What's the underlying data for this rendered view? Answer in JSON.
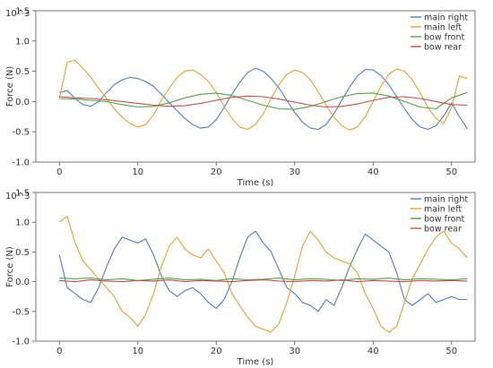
{
  "chart_data": [
    {
      "type": "line",
      "scale_label": "10^3",
      "xlabel": "Time (s)",
      "ylabel": "Force (N)",
      "xlim": [
        -3,
        53
      ],
      "ylim": [
        -1.0,
        1.5
      ],
      "xticks": [
        0,
        10,
        20,
        30,
        40,
        50
      ],
      "yticks": [
        -1.0,
        -0.5,
        0.0,
        0.5,
        1.0,
        1.5
      ],
      "ytick_labels": [
        "-1.0",
        "-0.5",
        "0.0",
        "0.5",
        "1.0",
        "1.5"
      ],
      "grid": false,
      "legend_position": "top-right",
      "series": [
        {
          "name": "main right",
          "color": "#4f7fbf",
          "x": [
            0,
            1,
            2,
            3,
            4,
            5,
            6,
            7,
            8,
            9,
            10,
            11,
            12,
            13,
            14,
            15,
            16,
            17,
            18,
            19,
            20,
            21,
            22,
            23,
            24,
            25,
            26,
            27,
            28,
            29,
            30,
            31,
            32,
            33,
            34,
            35,
            36,
            37,
            38,
            39,
            40,
            41,
            42,
            43,
            44,
            45,
            46,
            47,
            48,
            49,
            50,
            51,
            52
          ],
          "y": [
            0.15,
            0.18,
            0.05,
            -0.05,
            -0.08,
            0.0,
            0.15,
            0.28,
            0.36,
            0.4,
            0.38,
            0.33,
            0.25,
            0.12,
            -0.02,
            -0.15,
            -0.28,
            -0.38,
            -0.44,
            -0.42,
            -0.3,
            -0.1,
            0.12,
            0.32,
            0.48,
            0.55,
            0.5,
            0.38,
            0.22,
            0.02,
            -0.18,
            -0.34,
            -0.44,
            -0.46,
            -0.38,
            -0.2,
            0.02,
            0.24,
            0.42,
            0.53,
            0.52,
            0.43,
            0.28,
            0.08,
            -0.12,
            -0.3,
            -0.42,
            -0.46,
            -0.4,
            -0.24,
            -0.02,
            -0.25,
            -0.45
          ]
        },
        {
          "name": "main left",
          "color": "#e8a033",
          "x": [
            0,
            1,
            2,
            3,
            4,
            5,
            6,
            7,
            8,
            9,
            10,
            11,
            12,
            13,
            14,
            15,
            16,
            17,
            18,
            19,
            20,
            21,
            22,
            23,
            24,
            25,
            26,
            27,
            28,
            29,
            30,
            31,
            32,
            33,
            34,
            35,
            36,
            37,
            38,
            39,
            40,
            41,
            42,
            43,
            44,
            45,
            46,
            47,
            48,
            49,
            50,
            51,
            52
          ],
          "y": [
            0.05,
            0.65,
            0.68,
            0.55,
            0.4,
            0.22,
            0.05,
            -0.12,
            -0.26,
            -0.36,
            -0.42,
            -0.38,
            -0.22,
            0.02,
            0.22,
            0.4,
            0.5,
            0.52,
            0.45,
            0.33,
            0.15,
            -0.08,
            -0.28,
            -0.42,
            -0.46,
            -0.38,
            -0.2,
            0.05,
            0.28,
            0.45,
            0.52,
            0.48,
            0.36,
            0.16,
            -0.06,
            -0.26,
            -0.4,
            -0.47,
            -0.42,
            -0.25,
            0.0,
            0.25,
            0.45,
            0.54,
            0.5,
            0.36,
            0.14,
            -0.1,
            -0.28,
            -0.36,
            -0.1,
            0.42,
            0.38
          ]
        },
        {
          "name": "bow front",
          "color": "#5a9e4b",
          "x": [
            0,
            2,
            4,
            6,
            8,
            10,
            12,
            14,
            16,
            18,
            20,
            22,
            24,
            26,
            28,
            30,
            32,
            34,
            36,
            38,
            40,
            42,
            44,
            46,
            48,
            50,
            52
          ],
          "y": [
            0.05,
            0.04,
            0.02,
            0.0,
            -0.05,
            -0.09,
            -0.08,
            -0.02,
            0.06,
            0.12,
            0.14,
            0.1,
            0.02,
            -0.06,
            -0.12,
            -0.13,
            -0.08,
            0.0,
            0.08,
            0.13,
            0.14,
            0.09,
            0.0,
            -0.09,
            -0.12,
            0.06,
            0.15
          ]
        },
        {
          "name": "bow rear",
          "color": "#b85450",
          "x": [
            0,
            2,
            4,
            6,
            8,
            10,
            12,
            14,
            16,
            18,
            20,
            22,
            24,
            26,
            28,
            30,
            32,
            34,
            36,
            38,
            40,
            42,
            44,
            46,
            48,
            50,
            52
          ],
          "y": [
            0.08,
            0.06,
            0.05,
            0.03,
            0.0,
            -0.03,
            -0.06,
            -0.08,
            -0.07,
            -0.03,
            0.02,
            0.07,
            0.09,
            0.08,
            0.04,
            -0.01,
            -0.06,
            -0.09,
            -0.08,
            -0.04,
            0.02,
            0.07,
            0.08,
            0.05,
            0.0,
            -0.05,
            -0.06
          ]
        }
      ]
    },
    {
      "type": "line",
      "scale_label": "10^3",
      "xlabel": "Time (s)",
      "ylabel": "Force (N)",
      "xlim": [
        -3,
        53
      ],
      "ylim": [
        -1.0,
        1.5
      ],
      "xticks": [
        0,
        10,
        20,
        30,
        40,
        50
      ],
      "yticks": [
        -1.0,
        -0.5,
        0.0,
        0.5,
        1.0,
        1.5
      ],
      "ytick_labels": [
        "-1.0",
        "-0.5",
        "0.0",
        "0.5",
        "1.0",
        "1.5"
      ],
      "grid": false,
      "legend_position": "top-right",
      "series": [
        {
          "name": "main right",
          "color": "#4f7fbf",
          "x": [
            0,
            1,
            2,
            3,
            4,
            5,
            6,
            7,
            8,
            9,
            10,
            11,
            12,
            13,
            14,
            15,
            16,
            17,
            18,
            19,
            20,
            21,
            22,
            23,
            24,
            25,
            26,
            27,
            28,
            29,
            30,
            31,
            32,
            33,
            34,
            35,
            36,
            37,
            38,
            39,
            40,
            41,
            42,
            43,
            44,
            45,
            46,
            47,
            48,
            49,
            50,
            51,
            52
          ],
          "y": [
            0.45,
            -0.1,
            -0.2,
            -0.3,
            -0.35,
            -0.1,
            0.25,
            0.55,
            0.75,
            0.7,
            0.65,
            0.72,
            0.45,
            0.1,
            -0.15,
            -0.25,
            -0.15,
            -0.1,
            -0.2,
            -0.35,
            -0.45,
            -0.3,
            0.0,
            0.4,
            0.75,
            0.85,
            0.65,
            0.5,
            0.2,
            -0.1,
            -0.2,
            -0.35,
            -0.4,
            -0.5,
            -0.3,
            -0.4,
            -0.1,
            0.25,
            0.55,
            0.8,
            0.7,
            0.6,
            0.5,
            0.15,
            -0.3,
            -0.4,
            -0.3,
            -0.2,
            -0.35,
            -0.3,
            -0.25,
            -0.3,
            -0.3
          ]
        },
        {
          "name": "main left",
          "color": "#e8a033",
          "x": [
            0,
            1,
            2,
            3,
            4,
            5,
            6,
            7,
            8,
            9,
            10,
            11,
            12,
            13,
            14,
            15,
            16,
            17,
            18,
            19,
            20,
            21,
            22,
            23,
            24,
            25,
            26,
            27,
            28,
            29,
            30,
            31,
            32,
            33,
            34,
            35,
            36,
            37,
            38,
            39,
            40,
            41,
            42,
            43,
            44,
            45,
            46,
            47,
            48,
            49,
            50,
            51,
            52
          ],
          "y": [
            1.0,
            1.1,
            0.65,
            0.35,
            0.2,
            0.05,
            -0.1,
            -0.25,
            -0.5,
            -0.6,
            -0.75,
            -0.55,
            -0.2,
            0.25,
            0.6,
            0.75,
            0.55,
            0.45,
            0.4,
            0.55,
            0.35,
            0.15,
            -0.2,
            -0.4,
            -0.6,
            -0.75,
            -0.8,
            -0.85,
            -0.7,
            -0.35,
            0.1,
            0.6,
            0.85,
            0.7,
            0.5,
            0.4,
            0.35,
            0.3,
            0.15,
            -0.2,
            -0.45,
            -0.75,
            -0.85,
            -0.75,
            -0.35,
            0.05,
            0.3,
            0.55,
            0.75,
            0.85,
            0.65,
            0.55,
            0.4
          ]
        },
        {
          "name": "bow front",
          "color": "#5a9e4b",
          "x": [
            0,
            2,
            4,
            6,
            8,
            10,
            12,
            14,
            16,
            18,
            20,
            22,
            24,
            26,
            28,
            30,
            32,
            34,
            36,
            38,
            40,
            42,
            44,
            46,
            48,
            50,
            52
          ],
          "y": [
            0.06,
            0.05,
            0.06,
            0.03,
            0.05,
            0.02,
            0.04,
            0.06,
            0.03,
            0.04,
            0.02,
            0.05,
            0.03,
            0.04,
            0.06,
            0.03,
            0.05,
            0.04,
            0.02,
            0.05,
            0.04,
            0.06,
            0.03,
            0.05,
            0.04,
            0.03,
            0.05
          ]
        },
        {
          "name": "bow rear",
          "color": "#b85450",
          "x": [
            0,
            2,
            4,
            6,
            8,
            10,
            12,
            14,
            16,
            18,
            20,
            22,
            24,
            26,
            28,
            30,
            32,
            34,
            36,
            38,
            40,
            42,
            44,
            46,
            48,
            50,
            52
          ],
          "y": [
            0.02,
            0.0,
            0.03,
            0.01,
            0.0,
            0.02,
            0.01,
            0.03,
            0.0,
            0.02,
            0.01,
            0.0,
            0.02,
            0.03,
            0.01,
            0.0,
            0.02,
            0.01,
            0.03,
            0.0,
            0.02,
            0.01,
            0.0,
            0.02,
            0.01,
            0.02,
            0.01
          ]
        }
      ]
    }
  ]
}
